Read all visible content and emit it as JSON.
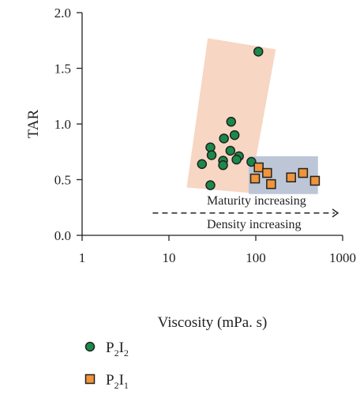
{
  "chart_data": {
    "type": "scatter",
    "xlabel": "Viscosity (mPa. s)",
    "ylabel": "TAR",
    "x_scale": "log",
    "xlim": [
      1,
      1000
    ],
    "ylim": [
      0,
      2.0
    ],
    "x_ticks": [
      "1",
      "10",
      "100",
      "1000"
    ],
    "y_ticks": [
      "0.0",
      "0.5",
      "1.0",
      "1.5",
      "2.0"
    ],
    "grid": false,
    "legend_position": "bottom-left",
    "annotations": [
      "Maturity increasing",
      "Density increasing"
    ],
    "colors": {
      "p2i2_fill": "#1a8a4a",
      "p2i1_fill": "#f0953a",
      "region_p2i2": "#f6d2bd",
      "region_p2i1": "#b8c3d4",
      "marker_stroke": "#222222"
    },
    "series": [
      {
        "name_main": "P",
        "name_sub1": "2",
        "name_mid": "I",
        "name_sub2": "2",
        "marker": "circle",
        "points": [
          {
            "x": 107,
            "y": 1.65
          },
          {
            "x": 52,
            "y": 1.02
          },
          {
            "x": 57,
            "y": 0.9
          },
          {
            "x": 43,
            "y": 0.87
          },
          {
            "x": 30,
            "y": 0.79
          },
          {
            "x": 51,
            "y": 0.76
          },
          {
            "x": 31,
            "y": 0.72
          },
          {
            "x": 64,
            "y": 0.71
          },
          {
            "x": 60,
            "y": 0.68
          },
          {
            "x": 42,
            "y": 0.67
          },
          {
            "x": 89,
            "y": 0.66
          },
          {
            "x": 24,
            "y": 0.64
          },
          {
            "x": 42,
            "y": 0.63
          },
          {
            "x": 30,
            "y": 0.45
          }
        ]
      },
      {
        "name_main": "P",
        "name_sub1": "2",
        "name_mid": "I",
        "name_sub2": "1",
        "marker": "square",
        "points": [
          {
            "x": 108,
            "y": 0.61
          },
          {
            "x": 135,
            "y": 0.56
          },
          {
            "x": 350,
            "y": 0.56
          },
          {
            "x": 255,
            "y": 0.52
          },
          {
            "x": 98,
            "y": 0.51
          },
          {
            "x": 480,
            "y": 0.49
          },
          {
            "x": 150,
            "y": 0.46
          }
        ]
      }
    ],
    "regions": [
      {
        "series": "P2I2",
        "corners": [
          {
            "x": 16,
            "y": 0.43
          },
          {
            "x": 85,
            "y": 0.38
          },
          {
            "x": 170,
            "y": 1.67
          },
          {
            "x": 28,
            "y": 1.77
          }
        ]
      },
      {
        "series": "P2I1",
        "corners": [
          {
            "x": 83,
            "y": 0.37
          },
          {
            "x": 520,
            "y": 0.37
          },
          {
            "x": 520,
            "y": 0.71
          },
          {
            "x": 83,
            "y": 0.71
          }
        ]
      }
    ],
    "arrow": {
      "x_start": 6.5,
      "x_end": 1000,
      "y": 0.2
    }
  }
}
